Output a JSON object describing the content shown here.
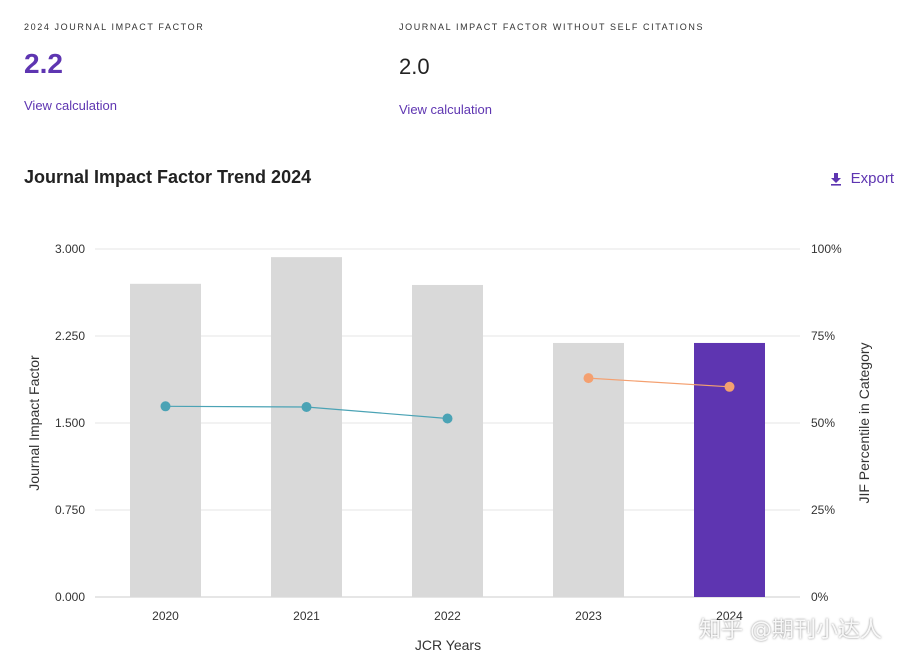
{
  "metrics": {
    "jif": {
      "label": "2024 JOURNAL IMPACT FACTOR",
      "value": "2.2",
      "link": "View calculation"
    },
    "jif_no_self": {
      "label": "JOURNAL IMPACT FACTOR WITHOUT SELF CITATIONS",
      "value": "2.0",
      "link": "View calculation"
    }
  },
  "trend": {
    "title": "Journal Impact Factor Trend 2024",
    "export_label": "Export",
    "export_icon": "download-icon"
  },
  "watermark": "知乎 @期刊小达人",
  "chart_data": {
    "type": "bar",
    "categories": [
      "2020",
      "2021",
      "2022",
      "2023",
      "2024"
    ],
    "series": [
      {
        "kind": "bar",
        "axis": "left",
        "values": [
          2.7,
          2.93,
          2.69,
          2.19,
          2.19
        ],
        "colors": [
          "#d9d9d9",
          "#d9d9d9",
          "#d9d9d9",
          "#d9d9d9",
          "#5e35b1"
        ]
      },
      {
        "kind": "line",
        "axis": "right",
        "values": [
          54.8,
          54.6,
          51.3,
          null,
          null
        ],
        "color": "#4ba3b5"
      },
      {
        "kind": "line",
        "axis": "right",
        "values": [
          null,
          null,
          null,
          62.9,
          60.4
        ],
        "color": "#f4a070"
      }
    ],
    "xlabel": "JCR Years",
    "ylabel": "Journal Impact Factor",
    "y2label": "JIF Percentile in Category",
    "ylim": [
      0,
      3
    ],
    "y2lim": [
      0,
      100
    ],
    "yticks": [
      "0.000",
      "0.750",
      "1.500",
      "2.250",
      "3.000"
    ],
    "y2ticks": [
      "0%",
      "25%",
      "50%",
      "75%",
      "100%"
    ],
    "grid": true
  }
}
